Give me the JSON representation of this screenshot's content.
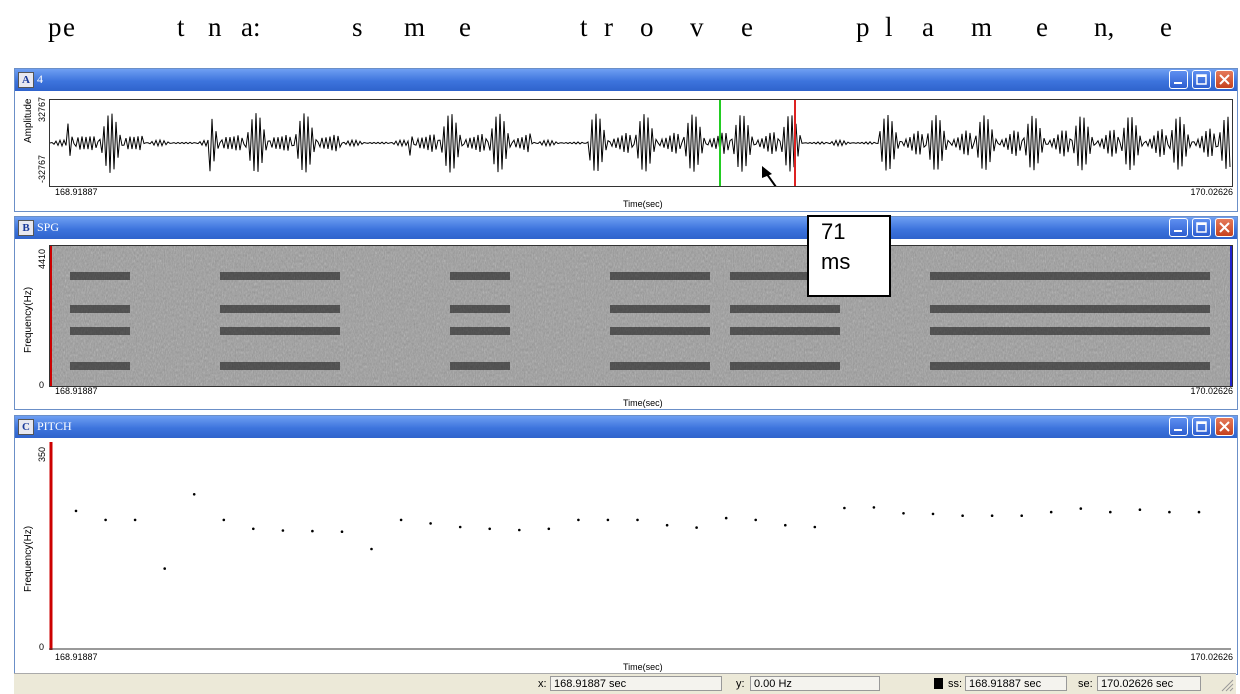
{
  "transcript": {
    "letters": [
      "p",
      "e",
      "t",
      "n",
      "a:",
      "s",
      "m",
      "e",
      "t",
      "r",
      "o",
      "v",
      "e",
      "p",
      "l",
      "a",
      "m",
      "e",
      "n,",
      "e"
    ]
  },
  "panes": [
    {
      "letter": "A",
      "title": "4",
      "ylabel": "Amplitude",
      "ymax": "32767",
      "ymin": "-32767",
      "xstart": "168.91887",
      "xend": "170.02626",
      "xlabel": "Time(sec)"
    },
    {
      "letter": "B",
      "title": "SPG",
      "ylabel": "Frequency(Hz)",
      "ymax": "4410",
      "ymin": "0",
      "xstart": "168.91887",
      "xend": "170.02626",
      "xlabel": "Time(sec)"
    },
    {
      "letter": "C",
      "title": "PITCH",
      "ylabel": "Frequency(Hz)",
      "ymax": "350",
      "ymin": "0",
      "xstart": "168.91887",
      "xend": "170.02626",
      "xlabel": "Time(sec)"
    }
  ],
  "annotation": {
    "line1": "71",
    "line2": "ms"
  },
  "pitch_points_hz": [
    234,
    219,
    219,
    137,
    262,
    219,
    204,
    201,
    200,
    199,
    170,
    219,
    213,
    207,
    204,
    202,
    204,
    219,
    219,
    219,
    210,
    206,
    222,
    219,
    210,
    207,
    239,
    240,
    230,
    229,
    226,
    226,
    226,
    232,
    238,
    232,
    236,
    232,
    232
  ],
  "status": {
    "x_label": "x:",
    "x_value": "168.91887 sec",
    "y_label": "y:",
    "y_value": "0.00 Hz",
    "ss_label": "ss:",
    "ss_value": "168.91887 sec",
    "se_label": "se:",
    "se_value": "170.02626 sec"
  },
  "colors": {
    "title_bar": "#3d74dd",
    "cursor_start": "#22cc22",
    "cursor_end": "#dd2222",
    "pitch_axis": "#cc0000"
  }
}
